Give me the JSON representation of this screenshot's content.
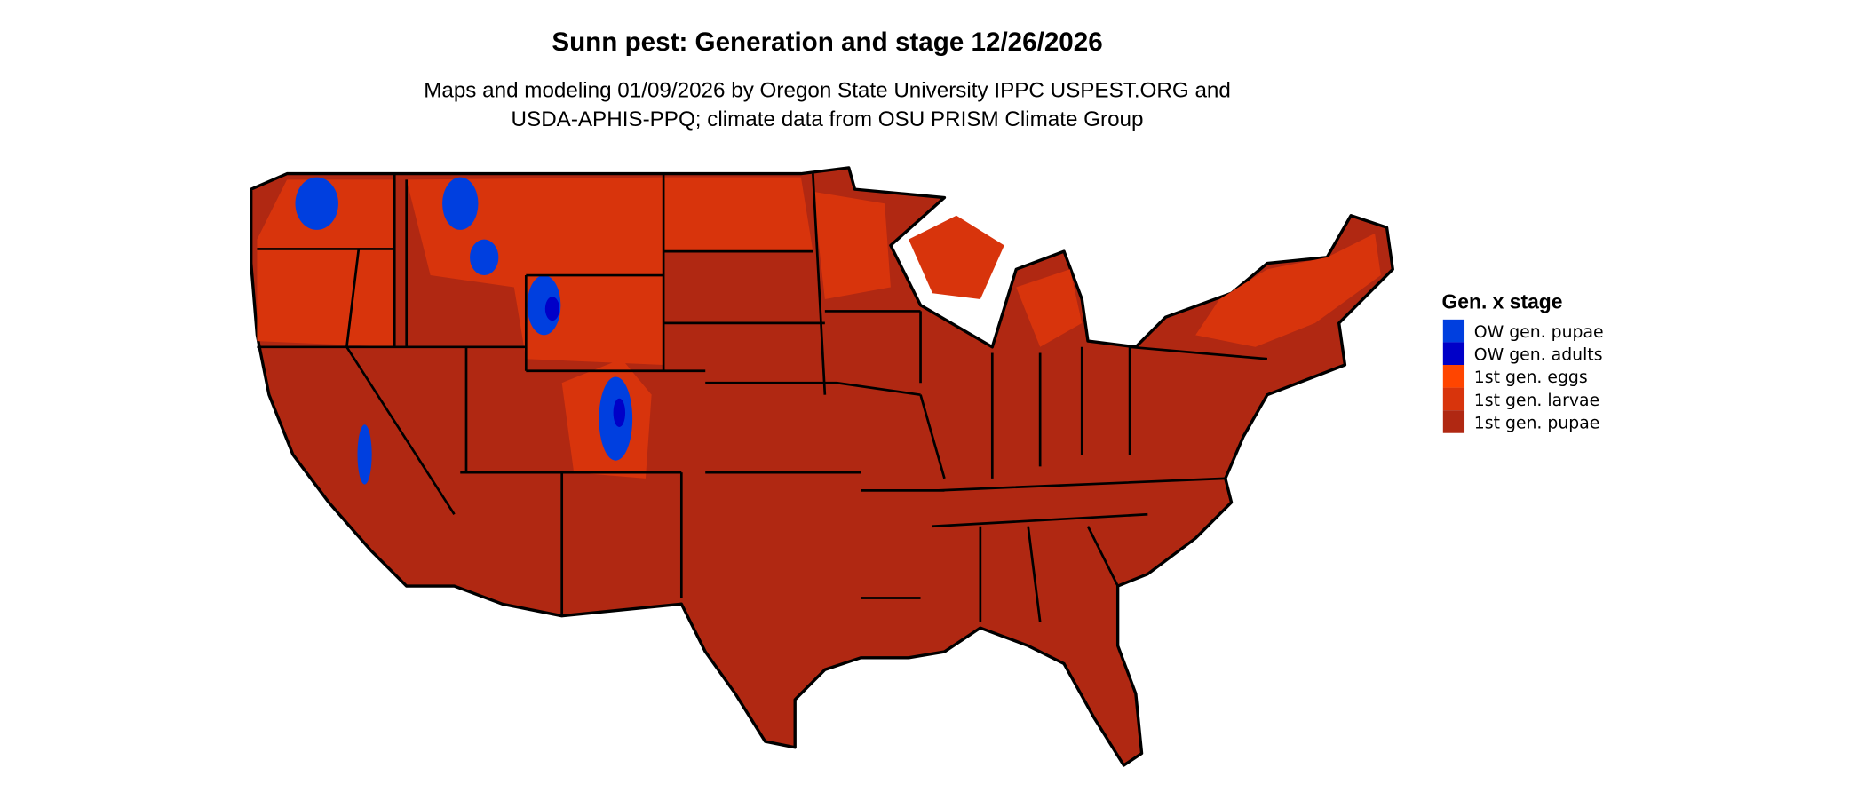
{
  "title": "Sunn pest: Generation and stage 12/26/2026",
  "subtitle_line1": "Maps and modeling 01/09/2026 by Oregon State University IPPC USPEST.ORG and",
  "subtitle_line2": "USDA-APHIS-PPQ; climate data from OSU PRISM Climate Group",
  "legend": {
    "title": "Gen. x stage",
    "items": [
      {
        "label": "OW gen. pupae",
        "color": "#003FDF"
      },
      {
        "label": "OW gen. adults",
        "color": "#0000C8"
      },
      {
        "label": "1st gen. eggs",
        "color": "#FF4500"
      },
      {
        "label": "1st gen. larvae",
        "color": "#D8340C"
      },
      {
        "label": "1st gen. pupae",
        "color": "#B02812"
      }
    ]
  },
  "map": {
    "region": "Contiguous United States",
    "dominant_stage": "1st gen. pupae"
  }
}
